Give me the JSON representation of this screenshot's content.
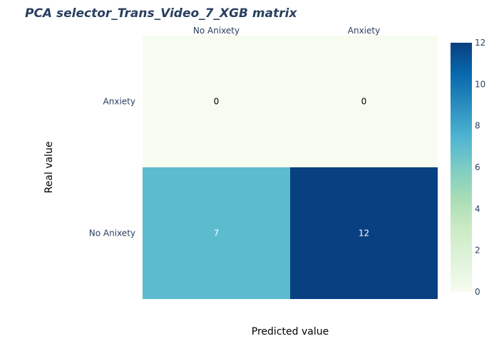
{
  "chart_data": {
    "type": "heatmap",
    "title": "PCA selector_Trans_Video_7_XGB matrix",
    "xlabel": "Predicted value",
    "ylabel": "Real value",
    "x_categories": [
      "No Anixety",
      "Anxiety"
    ],
    "y_categories": [
      "Anxiety",
      "No Anixety"
    ],
    "values": [
      [
        0,
        0
      ],
      [
        7,
        12
      ]
    ],
    "colorscale": "GnBu",
    "zrange": [
      0,
      12
    ],
    "colorbar_ticks": [
      0,
      2,
      4,
      6,
      8,
      10,
      12
    ],
    "x_axis_position": "top",
    "grid": false
  }
}
